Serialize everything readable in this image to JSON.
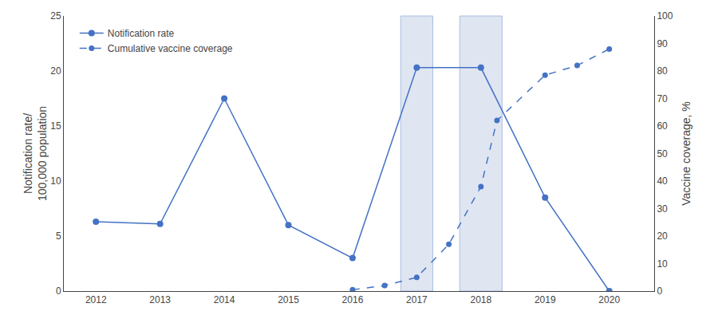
{
  "chart_data": {
    "type": "line",
    "ylabel": "Notification rate/\n100,000 population",
    "y2label": "Vaccine coverage, %",
    "xlim": [
      2011.5,
      2020.7
    ],
    "xticks": [
      2012,
      2013,
      2014,
      2015,
      2016,
      2017,
      2018,
      2019,
      2020
    ],
    "ylim": [
      0,
      25.0
    ],
    "yticks": [
      0,
      5,
      10,
      15,
      20,
      25
    ],
    "y2lim": [
      0,
      100
    ],
    "y2ticks": [
      0,
      10,
      20,
      30,
      40,
      50,
      60,
      70,
      80,
      90,
      100
    ],
    "grid": false,
    "legend": "upper left",
    "series": [
      {
        "name": "Notification rate",
        "color": "#4472C4",
        "marker": "circle",
        "line_style": "solid",
        "x": [
          2012,
          2013,
          2014,
          2015,
          2016,
          2017,
          2018,
          2019,
          2020
        ],
        "values": [
          6.3,
          6.1,
          17.5,
          6.0,
          3.0,
          20.3,
          20.3,
          8.5,
          0.0
        ]
      },
      {
        "name": "Cumulative vaccine coverage",
        "color": "#4472C4",
        "marker": "circle",
        "line_style": "dashed",
        "axis": "y2",
        "x": [
          2016.0,
          2016.5,
          2017.0,
          2017.5,
          2018.0,
          2018.25,
          2019.0,
          2019.5,
          2020.0
        ],
        "values": [
          0.5,
          2.0,
          5.0,
          17.0,
          38.0,
          62.0,
          78.5,
          82.0,
          88.0
        ]
      }
    ],
    "shaded_ranges": {
      "color": "#C5D3E8",
      "edge_color": "#4472C4",
      "ranges": [
        [
          2016.75,
          2017.25
        ],
        [
          2017.67,
          2018.33
        ]
      ]
    }
  }
}
